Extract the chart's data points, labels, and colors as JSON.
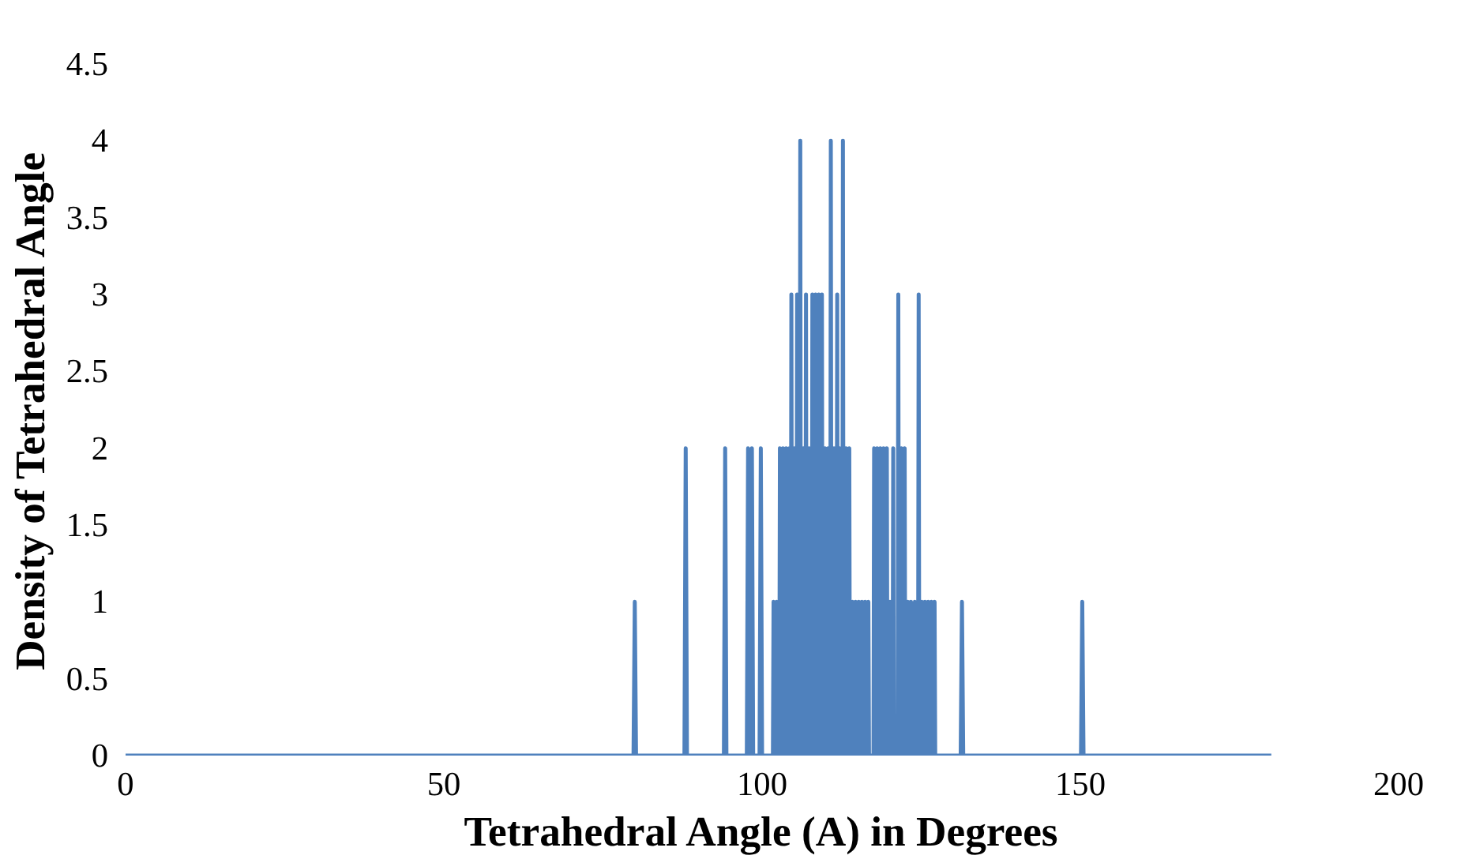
{
  "chart_data": {
    "type": "line",
    "xlabel": "Tetrahedral Angle (A) in Degrees",
    "ylabel": "Density of Tetrahedral Angle",
    "xlim": [
      0,
      200
    ],
    "xticks": [
      0,
      50,
      100,
      150,
      200
    ],
    "ylim": [
      0,
      4.5
    ],
    "yticks": [
      0,
      0.5,
      1,
      1.5,
      2,
      2.5,
      3,
      3.5,
      4,
      4.5
    ],
    "grid": false,
    "marker": "none",
    "line_style": "solid",
    "series": [
      {
        "color": "#4f81bd",
        "x": [
          0,
          79.8,
          80,
          80.2,
          87.8,
          88,
          88.2,
          94,
          94.2,
          94.4,
          97.6,
          97.8,
          98,
          98.2,
          98.4,
          98.6,
          99.6,
          99.8,
          100,
          101.7,
          101.8,
          101.9,
          102.2,
          102.3,
          102.4,
          102.7,
          102.8,
          102.9,
          103.2,
          103.3,
          103.4,
          103.7,
          103.8,
          103.9,
          104.2,
          104.3,
          104.4,
          104.5,
          104.6,
          104.7,
          105.0,
          105.1,
          105.2,
          105.4,
          105.5,
          105.6,
          105.9,
          106.0,
          106.1,
          106.4,
          106.5,
          106.6,
          106.8,
          106.9,
          107.0,
          107.3,
          107.4,
          107.5,
          107.8,
          107.9,
          108.0,
          108.3,
          108.4,
          108.5,
          108.8,
          108.9,
          109.0,
          109.3,
          109.4,
          109.5,
          109.8,
          109.9,
          110.0,
          110.3,
          110.4,
          110.5,
          110.7,
          110.8,
          110.9,
          111.2,
          111.3,
          111.4,
          111.7,
          111.8,
          111.9,
          112.1,
          112.2,
          112.3,
          112.6,
          112.7,
          112.8,
          113.1,
          113.2,
          113.3,
          113.6,
          113.7,
          113.8,
          114.1,
          114.2,
          114.3,
          114.6,
          114.7,
          114.8,
          115.1,
          115.2,
          115.3,
          115.6,
          115.7,
          115.8,
          116.1,
          116.2,
          116.3,
          116.6,
          116.7,
          116.8,
          117.5,
          117.6,
          117.7,
          118.0,
          118.1,
          118.2,
          118.5,
          118.6,
          118.7,
          119.0,
          119.1,
          119.2,
          119.5,
          119.6,
          119.7,
          120.0,
          120.1,
          120.2,
          120.5,
          120.6,
          120.7,
          121.3,
          121.4,
          121.5,
          121.8,
          121.9,
          122.0,
          122.3,
          122.4,
          122.5,
          122.8,
          122.9,
          123.0,
          123.3,
          123.4,
          123.5,
          123.9,
          124.0,
          124.1,
          124.5,
          124.6,
          124.7,
          125.0,
          125.1,
          125.2,
          125.5,
          125.6,
          125.7,
          126.0,
          126.1,
          126.2,
          126.5,
          126.6,
          126.7,
          127.0,
          127.1,
          127.2,
          131.2,
          131.4,
          131.6,
          150.1,
          150.3,
          150.5,
          180
        ],
        "values": [
          0,
          0,
          1,
          0,
          0,
          2,
          0,
          0,
          2,
          0,
          0,
          2,
          0,
          0,
          2,
          0,
          0,
          2,
          0,
          0,
          1,
          0,
          0,
          1,
          0,
          0,
          2,
          0,
          0,
          2,
          0,
          0,
          2,
          0,
          0,
          2,
          0,
          0,
          3,
          0,
          0,
          2,
          0,
          0,
          3,
          0,
          0,
          4,
          0,
          0,
          2,
          0,
          0,
          3,
          0,
          0,
          2,
          0,
          0,
          3,
          0,
          0,
          3,
          0,
          0,
          3,
          0,
          0,
          3,
          0,
          0,
          2,
          0,
          0,
          2,
          0,
          0,
          4,
          0,
          0,
          2,
          0,
          0,
          3,
          0,
          0,
          2,
          0,
          0,
          4,
          0,
          0,
          2,
          0,
          0,
          2,
          0,
          0,
          1,
          0,
          0,
          1,
          0,
          0,
          1,
          0,
          0,
          1,
          0,
          0,
          1,
          0,
          0,
          1,
          0,
          0,
          2,
          0,
          0,
          2,
          0,
          0,
          2,
          0,
          0,
          2,
          0,
          0,
          2,
          0,
          0,
          1,
          0,
          0,
          2,
          0,
          0,
          3,
          0,
          0,
          2,
          0,
          0,
          2,
          0,
          0,
          1,
          0,
          0,
          1,
          0,
          0,
          1,
          0,
          0,
          3,
          0,
          0,
          1,
          0,
          0,
          1,
          0,
          0,
          1,
          0,
          0,
          1,
          0,
          0,
          1,
          0,
          0,
          1,
          0,
          0,
          1,
          0,
          0
        ]
      }
    ]
  }
}
